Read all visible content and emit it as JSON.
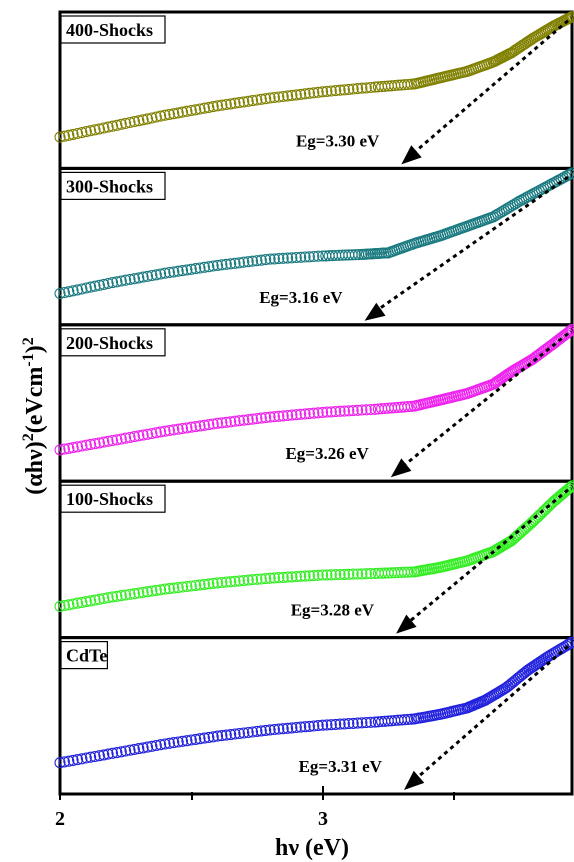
{
  "chart_data": {
    "type": "scatter",
    "layout": "stacked panels",
    "x_axis": {
      "label": "hν (eV)",
      "range": [
        2.0,
        3.95
      ],
      "ticks": [
        2,
        3
      ],
      "tick_labels": [
        "2",
        "3"
      ]
    },
    "y_axis": {
      "label_main": "(αhν)",
      "label_sup1": "2",
      "label_mid": "(eVcm",
      "label_sup2": "-1",
      "label_end": ")",
      "label_sup3": "2",
      "tick_labels_shown": false
    },
    "panels": [
      {
        "name": "400-Shocks",
        "color": "#808000",
        "bandgap_label": "Eg=3.30 eV",
        "bandgap": 3.3,
        "x": [
          2.0,
          2.2,
          2.4,
          2.6,
          2.8,
          3.0,
          3.2,
          3.35,
          3.45,
          3.55,
          3.65,
          3.72,
          3.8,
          3.88,
          3.95
        ],
        "y": [
          0.2,
          0.27,
          0.34,
          0.4,
          0.45,
          0.49,
          0.52,
          0.54,
          0.58,
          0.62,
          0.68,
          0.74,
          0.83,
          0.91,
          0.97
        ]
      },
      {
        "name": "300-Shocks",
        "color": "#1a7a80",
        "bandgap_label": "Eg=3.16 eV",
        "bandgap": 3.16,
        "x": [
          2.0,
          2.2,
          2.4,
          2.6,
          2.8,
          3.0,
          3.15,
          3.25,
          3.35,
          3.45,
          3.55,
          3.65,
          3.75,
          3.85,
          3.95
        ],
        "y": [
          0.2,
          0.27,
          0.33,
          0.38,
          0.42,
          0.44,
          0.45,
          0.46,
          0.52,
          0.57,
          0.63,
          0.69,
          0.79,
          0.88,
          0.97
        ]
      },
      {
        "name": "200-Shocks",
        "color": "#ee22ee",
        "bandgap_label": "Eg=3.26 eV",
        "bandgap": 3.26,
        "x": [
          2.0,
          2.2,
          2.4,
          2.6,
          2.8,
          3.0,
          3.2,
          3.35,
          3.45,
          3.55,
          3.65,
          3.72,
          3.8,
          3.88,
          3.95
        ],
        "y": [
          0.2,
          0.26,
          0.32,
          0.37,
          0.41,
          0.44,
          0.46,
          0.48,
          0.52,
          0.56,
          0.62,
          0.7,
          0.78,
          0.88,
          0.97
        ]
      },
      {
        "name": "100-Shocks",
        "color": "#33ee22",
        "bandgap_label": "Eg=3.28 eV",
        "bandgap": 3.28,
        "x": [
          2.0,
          2.2,
          2.4,
          2.6,
          2.8,
          3.0,
          3.2,
          3.35,
          3.45,
          3.55,
          3.65,
          3.72,
          3.8,
          3.88,
          3.95
        ],
        "y": [
          0.2,
          0.26,
          0.31,
          0.35,
          0.38,
          0.4,
          0.41,
          0.42,
          0.45,
          0.49,
          0.55,
          0.62,
          0.74,
          0.87,
          0.97
        ]
      },
      {
        "name": "CdTe",
        "color": "#2222dd",
        "bandgap_label": "Eg=3.31 eV",
        "bandgap": 3.31,
        "x": [
          2.0,
          2.2,
          2.4,
          2.6,
          2.8,
          3.0,
          3.2,
          3.35,
          3.45,
          3.55,
          3.62,
          3.7,
          3.78,
          3.86,
          3.95
        ],
        "y": [
          0.2,
          0.26,
          0.32,
          0.37,
          0.41,
          0.44,
          0.46,
          0.48,
          0.51,
          0.55,
          0.6,
          0.68,
          0.79,
          0.88,
          0.97
        ]
      }
    ],
    "grid": false,
    "legend": "none"
  }
}
